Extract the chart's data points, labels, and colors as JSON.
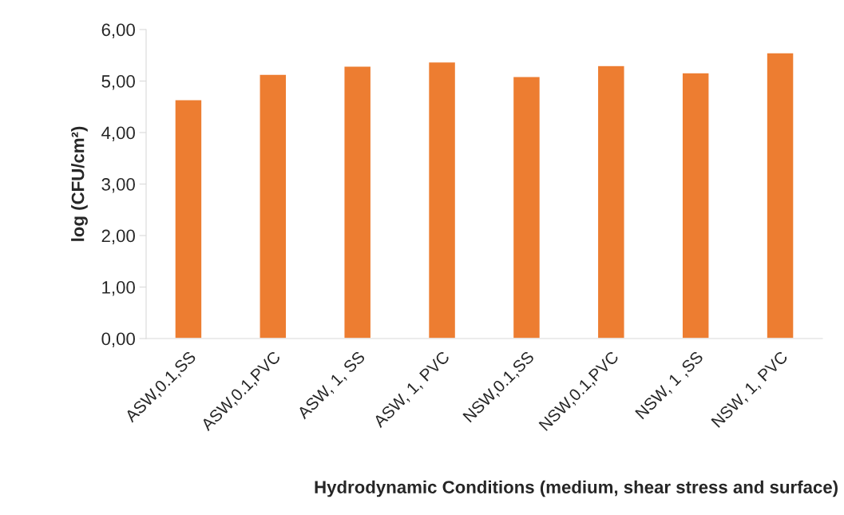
{
  "chart_data": {
    "type": "bar",
    "categories": [
      "ASW,0.1,SS",
      "ASW,0.1,PVC",
      "ASW, 1, SS",
      "ASW, 1, PVC",
      "NSW,0.1,SS",
      "NSW,0.1,PVC",
      "NSW, 1 ,SS",
      "NSW, 1, PVC"
    ],
    "values": [
      4.64,
      5.13,
      5.29,
      5.37,
      5.09,
      5.3,
      5.16,
      5.55
    ],
    "color": "#ed7d31",
    "xlabel": "Hydrodynamic Conditions (medium, shear stress and surface)",
    "ylabel": "log (CFU/cm²)",
    "ylim": [
      0,
      6
    ],
    "yticks": [
      {
        "value": 0,
        "label": "0,00"
      },
      {
        "value": 1,
        "label": "1,00"
      },
      {
        "value": 2,
        "label": "2,00"
      },
      {
        "value": 3,
        "label": "3,00"
      },
      {
        "value": 4,
        "label": "4,00"
      },
      {
        "value": 5,
        "label": "5,00"
      },
      {
        "value": 6,
        "label": "6,00"
      }
    ],
    "grid": false,
    "legend": false
  }
}
